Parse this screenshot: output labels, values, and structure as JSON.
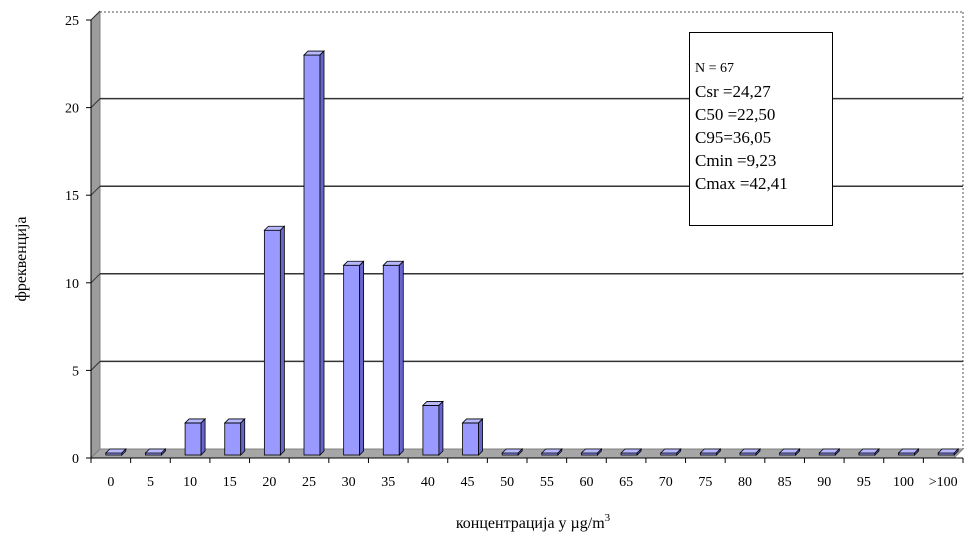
{
  "chart_data": {
    "type": "bar",
    "categories": [
      "0",
      "5",
      "10",
      "15",
      "20",
      "25",
      "30",
      "35",
      "40",
      "45",
      "50",
      "55",
      "60",
      "65",
      "70",
      "75",
      "80",
      "85",
      "90",
      "95",
      "100",
      ">100"
    ],
    "values": [
      0,
      0,
      2,
      2,
      13,
      23,
      11,
      11,
      3,
      2,
      0,
      0,
      0,
      0,
      0,
      0,
      0,
      0,
      0,
      0,
      0,
      0
    ],
    "xlabel_main": "концентрација у µg/m",
    "xlabel_sup": "3",
    "ylabel": "фреквенција",
    "ylim": [
      0,
      25
    ],
    "yticks": [
      0,
      5,
      10,
      15,
      20,
      25
    ],
    "grid": true,
    "bar_color": "#9999ff",
    "stats": [
      "N = 67",
      "Csr =24,27",
      "C50 =22,50",
      "C95=36,05",
      "Cmin =9,23",
      "Cmax =42,41"
    ]
  }
}
